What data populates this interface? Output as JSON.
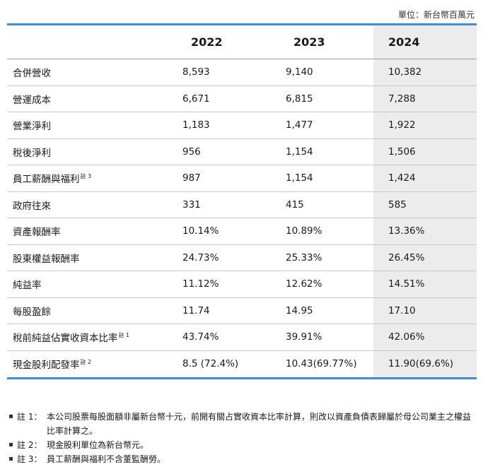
{
  "unit_label": "單位：新台幣百萬元",
  "headers": [
    "",
    "2022",
    "2023",
    "2024"
  ],
  "rows": [
    {
      "label": "合併營收",
      "note": "",
      "values": [
        "8,593",
        "9,140",
        "10,382"
      ]
    },
    {
      "label": "營運成本",
      "note": "",
      "values": [
        "6,671",
        "6,815",
        "7,288"
      ]
    },
    {
      "label": "營業淨利",
      "note": "",
      "values": [
        "1,183",
        "1,477",
        "1,922"
      ]
    },
    {
      "label": "稅後淨利",
      "note": "",
      "values": [
        "956",
        "1,154",
        "1,506"
      ]
    },
    {
      "label": "員工薪酬與福利",
      "note": "註 3",
      "values": [
        "987",
        "1,154",
        "1,424"
      ]
    },
    {
      "label": "政府往來",
      "note": "",
      "values": [
        "331",
        "415",
        "585"
      ]
    },
    {
      "label": "資產報酬率",
      "note": "",
      "values": [
        "10.14%",
        "10.89%",
        "13.36%"
      ]
    },
    {
      "label": "股東權益報酬率",
      "note": "",
      "values": [
        "24.73%",
        "25.33%",
        "26.45%"
      ]
    },
    {
      "label": "純益率",
      "note": "",
      "values": [
        "11.12%",
        "12.62%",
        "14.51%"
      ]
    },
    {
      "label": "每股盈餘",
      "note": "",
      "values": [
        "11.74",
        "14.95",
        "17.10"
      ]
    },
    {
      "label": "稅前純益佔實收資本比率",
      "note": "註 1",
      "values": [
        "43.74%",
        "39.91%",
        "42.06%"
      ]
    },
    {
      "label": "現金股利配發率",
      "note": "註 2",
      "values": [
        "8.5 (72.4%)",
        "10.43(69.77%)",
        "11.90(69.6%)"
      ]
    }
  ],
  "notes": [
    {
      "tag": "註 1：",
      "text": "本公司股票每股面額非屬新台幣十元，前開有關占實收資本比率計算，則改以資產負債表歸屬於母公司業主之權益比率計算之。"
    },
    {
      "tag": "註 2：",
      "text": "現金股利單位為新台幣元。"
    },
    {
      "tag": "註 3：",
      "text": "員工薪酬與福利不含董監酬勞。"
    }
  ]
}
